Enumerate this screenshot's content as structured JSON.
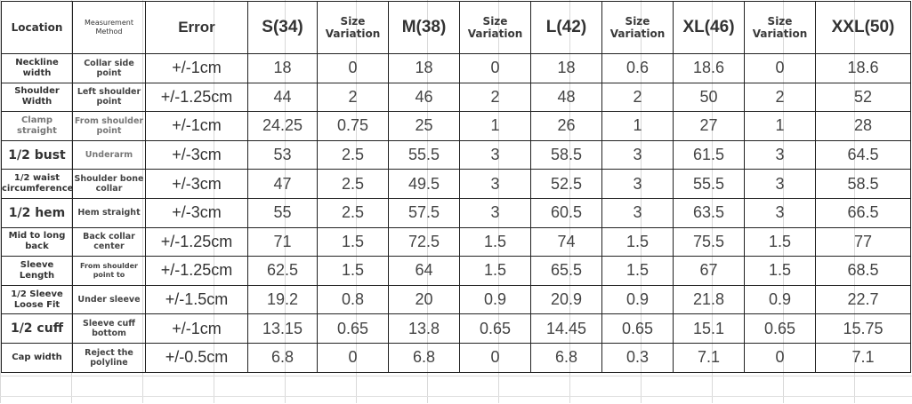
{
  "headers": {
    "location": "Location",
    "method": "Measurement Method",
    "error": "Error",
    "sizes": [
      "S(34)",
      "M(38)",
      "L(42)",
      "XL(46)",
      "XXL(50)"
    ],
    "variation": "Size Variation"
  },
  "rows": [
    {
      "location": "Neckline width",
      "method": "Collar side point",
      "error": "+/-1cm",
      "s": "18",
      "v1": "0",
      "m": "18",
      "v2": "0",
      "l": "18",
      "v3": "0.6",
      "xl": "18.6",
      "v4": "0",
      "xxl": "18.6"
    },
    {
      "location": "Shoulder Width",
      "method": "Left shoulder point",
      "error": "+/-1.25cm",
      "s": "44",
      "v1": "2",
      "m": "46",
      "v2": "2",
      "l": "48",
      "v3": "2",
      "xl": "50",
      "v4": "2",
      "xxl": "52"
    },
    {
      "location": "Clamp straight",
      "method": "From shoulder point",
      "error": "+/-1cm",
      "s": "24.25",
      "v1": "0.75",
      "m": "25",
      "v2": "1",
      "l": "26",
      "v3": "1",
      "xl": "27",
      "v4": "1",
      "xxl": "28"
    },
    {
      "location": "1/2 bust",
      "method": "Underarm",
      "error": "+/-3cm",
      "s": "53",
      "v1": "2.5",
      "m": "55.5",
      "v2": "3",
      "l": "58.5",
      "v3": "3",
      "xl": "61.5",
      "v4": "3",
      "xxl": "64.5"
    },
    {
      "location": "1/2 waist circumference",
      "method": "Shoulder bone collar",
      "error": "+/-3cm",
      "s": "47",
      "v1": "2.5",
      "m": "49.5",
      "v2": "3",
      "l": "52.5",
      "v3": "3",
      "xl": "55.5",
      "v4": "3",
      "xxl": "58.5"
    },
    {
      "location": "1/2 hem",
      "method": "Hem straight",
      "error": "+/-3cm",
      "s": "55",
      "v1": "2.5",
      "m": "57.5",
      "v2": "3",
      "l": "60.5",
      "v3": "3",
      "xl": "63.5",
      "v4": "3",
      "xxl": "66.5"
    },
    {
      "location": "Mid to long back",
      "method": "Back collar center",
      "error": "+/-1.25cm",
      "s": "71",
      "v1": "1.5",
      "m": "72.5",
      "v2": "1.5",
      "l": "74",
      "v3": "1.5",
      "xl": "75.5",
      "v4": "1.5",
      "xxl": "77"
    },
    {
      "location": "Sleeve Length",
      "method": "From shoulder point to",
      "error": "+/-1.25cm",
      "s": "62.5",
      "v1": "1.5",
      "m": "64",
      "v2": "1.5",
      "l": "65.5",
      "v3": "1.5",
      "xl": "67",
      "v4": "1.5",
      "xxl": "68.5"
    },
    {
      "location": "1/2 Sleeve Loose Fit",
      "method": "Under sleeve",
      "error": "+/-1.5cm",
      "s": "19.2",
      "v1": "0.8",
      "m": "20",
      "v2": "0.9",
      "l": "20.9",
      "v3": "0.9",
      "xl": "21.8",
      "v4": "0.9",
      "xxl": "22.7"
    },
    {
      "location": "1/2 cuff",
      "method": "Sleeve cuff bottom",
      "error": "+/-1cm",
      "s": "13.15",
      "v1": "0.65",
      "m": "13.8",
      "v2": "0.65",
      "l": "14.45",
      "v3": "0.65",
      "xl": "15.1",
      "v4": "0.65",
      "xxl": "15.75"
    },
    {
      "location": "Cap width",
      "method": "Reject the polyline",
      "error": "+/-0.5cm",
      "s": "6.8",
      "v1": "0",
      "m": "6.8",
      "v2": "0",
      "l": "6.8",
      "v3": "0.3",
      "xl": "7.1",
      "v4": "0",
      "xxl": "7.1"
    }
  ]
}
